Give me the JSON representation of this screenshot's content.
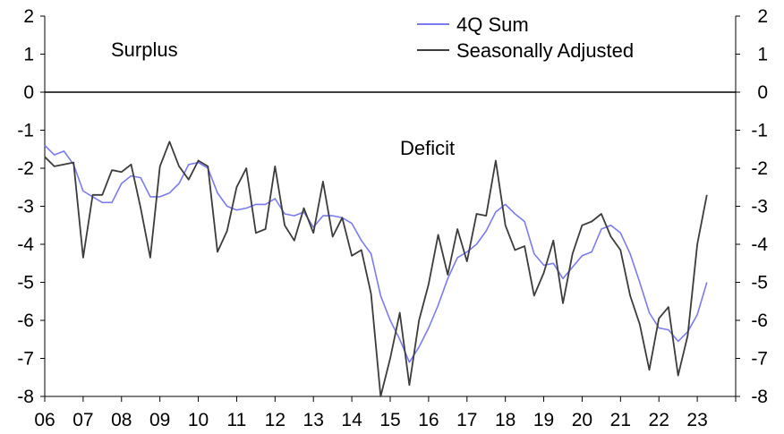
{
  "chart_data": {
    "type": "line",
    "x_start_year": 2006.0,
    "x_step": 0.25,
    "xlim": [
      2006,
      2024
    ],
    "ylim": [
      -8,
      2
    ],
    "yticks": [
      2,
      1,
      0,
      -1,
      -2,
      -3,
      -4,
      -5,
      -6,
      -7,
      -8
    ],
    "yticks_right": [
      2,
      1,
      0,
      -1,
      -2,
      -3,
      -4,
      -5,
      -6,
      -7,
      -8
    ],
    "xtick_labels": [
      "06",
      "07",
      "08",
      "09",
      "10",
      "11",
      "12",
      "13",
      "14",
      "15",
      "16",
      "17",
      "18",
      "19",
      "20",
      "21",
      "22",
      "23"
    ],
    "annotations": {
      "surplus": "Surplus",
      "deficit": "Deficit"
    },
    "legend_position": "top-center",
    "series": [
      {
        "name": "4Q Sum",
        "color": "#7b7bf0",
        "values": [
          -1.4,
          -1.65,
          -1.55,
          -1.9,
          -2.6,
          -2.75,
          -2.9,
          -2.9,
          -2.4,
          -2.2,
          -2.25,
          -2.75,
          -2.75,
          -2.65,
          -2.4,
          -1.9,
          -1.85,
          -2.0,
          -2.65,
          -3.0,
          -3.1,
          -3.05,
          -2.95,
          -2.95,
          -2.8,
          -3.2,
          -3.25,
          -3.15,
          -3.55,
          -3.25,
          -3.25,
          -3.3,
          -3.45,
          -3.9,
          -4.25,
          -5.35,
          -6.0,
          -6.5,
          -7.1,
          -6.7,
          -6.2,
          -5.6,
          -4.9,
          -4.35,
          -4.2,
          -4.0,
          -3.65,
          -3.15,
          -2.95,
          -3.2,
          -3.4,
          -4.25,
          -4.55,
          -4.5,
          -4.9,
          -4.6,
          -4.3,
          -4.2,
          -3.6,
          -3.5,
          -3.7,
          -4.25,
          -5.0,
          -5.8,
          -6.2,
          -6.25,
          -6.55,
          -6.3,
          -5.85,
          -5.0
        ]
      },
      {
        "name": "Seasonally Adjusted",
        "color": "#3c3c3c",
        "values": [
          -1.7,
          -1.95,
          -1.9,
          -1.85,
          -4.35,
          -2.7,
          -2.7,
          -2.05,
          -2.1,
          -1.9,
          -3.05,
          -4.35,
          -1.95,
          -1.3,
          -1.95,
          -2.3,
          -1.8,
          -1.95,
          -4.2,
          -3.65,
          -2.5,
          -2.0,
          -3.7,
          -3.6,
          -1.95,
          -3.5,
          -3.9,
          -3.05,
          -3.7,
          -2.35,
          -3.8,
          -3.3,
          -4.3,
          -4.15,
          -5.3,
          -8.0,
          -7.0,
          -5.8,
          -7.7,
          -6.0,
          -5.05,
          -3.75,
          -4.8,
          -3.6,
          -4.45,
          -3.2,
          -3.25,
          -1.8,
          -3.5,
          -4.15,
          -4.05,
          -5.35,
          -4.75,
          -3.9,
          -5.55,
          -4.25,
          -3.5,
          -3.4,
          -3.2,
          -3.8,
          -4.15,
          -5.35,
          -6.1,
          -7.3,
          -5.95,
          -5.65,
          -7.45,
          -6.4,
          -4.0,
          -2.7
        ]
      }
    ]
  }
}
